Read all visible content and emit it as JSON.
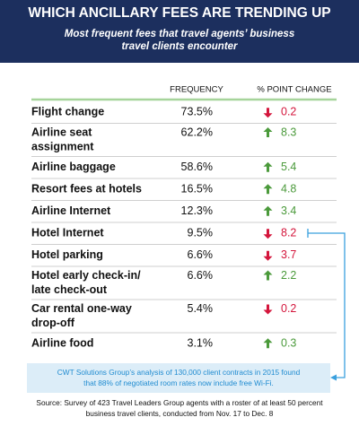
{
  "header": {
    "title": "WHICH ANCILLARY FEES ARE TRENDING UP",
    "subtitle": [
      "Most frequent fees that travel agents’ business",
      "travel clients encounter"
    ]
  },
  "table": {
    "columns": [
      "FREQUENCY",
      "% POINT CHANGE"
    ],
    "rows": [
      {
        "label": [
          "Flight change"
        ],
        "frequency": "73.5%",
        "direction": "down",
        "change": "0.2"
      },
      {
        "label": [
          "Airline seat",
          "assignment"
        ],
        "frequency": "62.2%",
        "direction": "up",
        "change": "8.3"
      },
      {
        "label": [
          "Airline baggage"
        ],
        "frequency": "58.6%",
        "direction": "up",
        "change": "5.4"
      },
      {
        "label": [
          "Resort fees at hotels"
        ],
        "frequency": "16.5%",
        "direction": "up",
        "change": "4.8"
      },
      {
        "label": [
          "Airline Internet"
        ],
        "frequency": "12.3%",
        "direction": "up",
        "change": "3.4"
      },
      {
        "label": [
          "Hotel Internet"
        ],
        "frequency": "9.5%",
        "direction": "down",
        "change": "8.2"
      },
      {
        "label": [
          "Hotel parking"
        ],
        "frequency": "6.6%",
        "direction": "down",
        "change": "3.7"
      },
      {
        "label": [
          "Hotel early check-in/",
          "late check-out"
        ],
        "frequency": "6.6%",
        "direction": "up",
        "change": "2.2"
      },
      {
        "label": [
          "Car rental one-way",
          "drop-off"
        ],
        "frequency": "5.4%",
        "direction": "down",
        "change": "0.2"
      },
      {
        "label": [
          "Airline food"
        ],
        "frequency": "3.1%",
        "direction": "up",
        "change": "0.3"
      }
    ]
  },
  "callout": [
    "CWT Solutions Group’s analysis of 130,000 client contracts in 2015 found",
    "that 88% of negotiated room rates now include free Wi-Fi."
  ],
  "source": [
    "Source: Survey of 423 Travel Leaders Group agents with a roster of at least 50 percent",
    "business travel clients, conducted from Nov. 17 to Dec. 8"
  ]
}
